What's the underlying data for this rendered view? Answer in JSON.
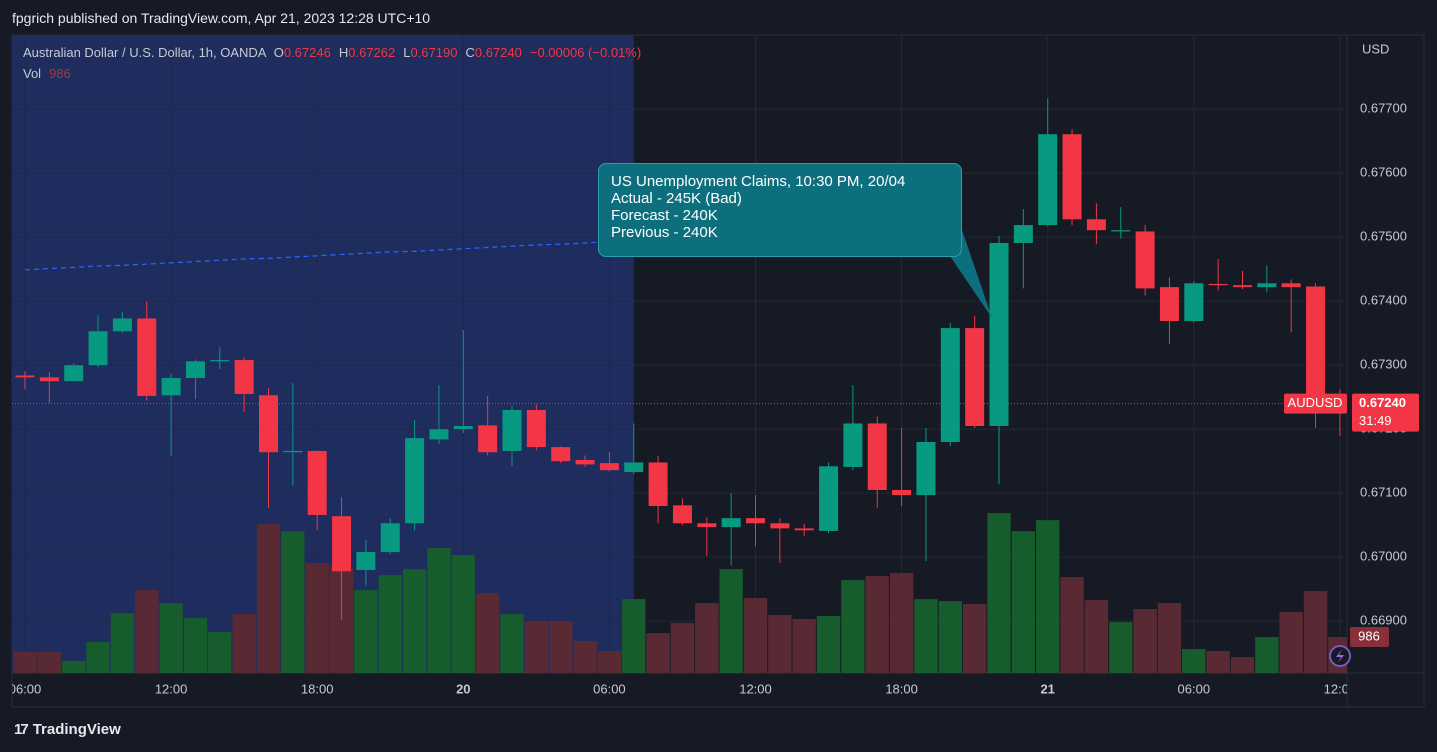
{
  "chart_data": {
    "type": "candlestick",
    "published": "fpgrich published on TradingView.com, Apr 21, 2023 12:28 UTC+10",
    "legend": {
      "symbol": "Australian Dollar / U.S. Dollar, 1h, OANDA",
      "o_label": "O",
      "open": "0.67246",
      "h_label": "H",
      "high": "0.67262",
      "l_label": "L",
      "low": "0.67190",
      "c_label": "C",
      "close": "0.67240",
      "change": "−0.00006 (−0.01%)",
      "vol_label": "Vol"
    },
    "currency": "USD",
    "annotation": {
      "lines": [
        "US Unemployment Claims, 10:30 PM, 20/04",
        "Actual - 245K (Bad)",
        "Forecast - 240K",
        "Previous - 240K"
      ]
    },
    "price_label": {
      "symbol": "AUDUSD",
      "price": "0.67240",
      "countdown": "31:49"
    },
    "brand": "TradingView",
    "colors": {
      "up": "#089981",
      "down": "#f23645",
      "volume_up": "#175c2c",
      "volume_down": "#5a2a34",
      "highlight": "#1e2c5e"
    },
    "categories": [
      "06:00",
      null,
      null,
      null,
      null,
      null,
      "12:00",
      null,
      null,
      null,
      null,
      null,
      "18:00",
      null,
      null,
      null,
      null,
      null,
      "20",
      null,
      null,
      null,
      null,
      null,
      "06:00",
      null,
      null,
      null,
      null,
      null,
      "12:00",
      null,
      null,
      null,
      null,
      null,
      "18:00",
      null,
      null,
      null,
      null,
      null,
      "21",
      null,
      null,
      null,
      null,
      null,
      "06:00",
      null,
      null,
      null,
      null,
      null,
      "12:00"
    ],
    "open": [
      0.67284,
      0.67281,
      0.67275,
      0.673,
      0.67353,
      0.67373,
      0.67253,
      0.6728,
      0.67306,
      0.67308,
      0.67253,
      0.67164,
      0.67166,
      0.67064,
      0.6698,
      0.67008,
      0.67053,
      0.67184,
      0.672,
      0.67206,
      0.67166,
      0.6723,
      0.67172,
      0.67152,
      0.67147,
      0.67133,
      0.67148,
      0.67081,
      0.67053,
      0.67047,
      0.67061,
      0.67053,
      0.67045,
      0.67041,
      0.67141,
      0.67209,
      0.67105,
      0.67097,
      0.6718,
      0.67358,
      0.67205,
      0.67491,
      0.67519,
      0.67661,
      0.67528,
      0.67509,
      0.67509,
      0.67422,
      0.67369,
      0.67427,
      0.67425,
      0.67422,
      0.67428,
      0.67423,
      0.67246
    ],
    "high": [
      0.67291,
      0.67289,
      0.67303,
      0.67378,
      0.67383,
      0.674,
      0.67287,
      0.67309,
      0.67328,
      0.67312,
      0.67264,
      0.67272,
      0.67167,
      0.67094,
      0.67027,
      0.67061,
      0.67214,
      0.67269,
      0.67355,
      0.67252,
      0.67236,
      0.67239,
      0.67173,
      0.67159,
      0.67164,
      0.67209,
      0.67158,
      0.67092,
      0.67062,
      0.671,
      0.67097,
      0.67061,
      0.67052,
      0.67148,
      0.67269,
      0.6722,
      0.67202,
      0.67202,
      0.67366,
      0.67377,
      0.67502,
      0.67544,
      0.67717,
      0.67669,
      0.67553,
      0.67547,
      0.67519,
      0.67437,
      0.67431,
      0.67466,
      0.67447,
      0.67456,
      0.67434,
      0.67428,
      0.67262
    ],
    "low": [
      0.67262,
      0.67241,
      0.67275,
      0.67297,
      0.6735,
      0.67245,
      0.67158,
      0.67247,
      0.67294,
      0.67227,
      0.67077,
      0.67112,
      0.67042,
      0.66902,
      0.66956,
      0.67005,
      0.67042,
      0.67177,
      0.67194,
      0.67159,
      0.67142,
      0.67167,
      0.67147,
      0.67141,
      0.67134,
      0.6713,
      0.67053,
      0.6705,
      0.67002,
      0.66987,
      0.67017,
      0.66991,
      0.67033,
      0.67037,
      0.67136,
      0.67077,
      0.6708,
      0.66994,
      0.67173,
      0.67202,
      0.67114,
      0.6742,
      0.67517,
      0.67519,
      0.67489,
      0.67498,
      0.67409,
      0.67333,
      0.67367,
      0.67417,
      0.67419,
      0.67414,
      0.67352,
      0.67202,
      0.6719
    ],
    "close": [
      0.67281,
      0.67275,
      0.673,
      0.67353,
      0.67373,
      0.67252,
      0.6728,
      0.67306,
      0.67308,
      0.67255,
      0.67164,
      0.67166,
      0.67066,
      0.66978,
      0.67008,
      0.67053,
      0.67186,
      0.672,
      0.67205,
      0.67164,
      0.6723,
      0.67172,
      0.6715,
      0.67145,
      0.67136,
      0.67148,
      0.6708,
      0.67053,
      0.67047,
      0.67061,
      0.67053,
      0.67045,
      0.67042,
      0.67142,
      0.67209,
      0.67105,
      0.67097,
      0.6718,
      0.67358,
      0.67205,
      0.67491,
      0.67519,
      0.67661,
      0.67528,
      0.67511,
      0.67511,
      0.6742,
      0.67369,
      0.67428,
      0.67425,
      0.67422,
      0.67428,
      0.67422,
      0.67234,
      0.6724
    ],
    "volume": [
      575,
      575,
      329,
      849,
      1643,
      2274,
      1918,
      1507,
      1123,
      1617,
      4083,
      3891,
      3014,
      2904,
      2274,
      2685,
      2850,
      3425,
      3233,
      2192,
      1617,
      1425,
      1425,
      877,
      603,
      2028,
      1096,
      1370,
      1918,
      2850,
      2055,
      1589,
      1480,
      1562,
      2548,
      2658,
      2740,
      2028,
      1973,
      1891,
      4384,
      3891,
      4192,
      2630,
      2000,
      1397,
      1754,
      1918,
      658,
      603,
      438,
      986,
      1671,
      2247,
      986
    ],
    "trend_line": {
      "color": "#2962ff",
      "values": [
        0.67449,
        0.67451,
        0.67453,
        0.67455,
        0.67456,
        0.67458,
        0.6746,
        0.67462,
        0.67464,
        0.67466,
        0.67467,
        0.67469,
        0.67471,
        0.67473,
        0.67475,
        0.67477,
        0.67478,
        0.6748,
        0.67482,
        0.67484,
        0.67486,
        0.67488,
        0.67489,
        0.67491,
        0.67493,
        0.67495,
        null,
        null,
        null,
        null,
        null,
        null,
        null,
        null,
        null,
        null,
        null,
        null,
        null,
        null,
        null,
        null,
        null,
        null,
        null,
        null,
        null,
        null,
        null,
        null,
        null,
        null,
        null,
        null,
        null
      ]
    },
    "ylim": [
      0.66819,
      0.67816
    ],
    "yticks": [
      {
        "value": 0.669,
        "label": "0.66900"
      },
      {
        "value": 0.67,
        "label": "0.67000"
      },
      {
        "value": 0.671,
        "label": "0.67100"
      },
      {
        "value": 0.672,
        "label": "0.67200"
      },
      {
        "value": 0.673,
        "label": "0.67300"
      },
      {
        "value": 0.674,
        "label": "0.67400"
      },
      {
        "value": 0.675,
        "label": "0.67500"
      },
      {
        "value": 0.676,
        "label": "0.67600"
      },
      {
        "value": 0.677,
        "label": "0.67700"
      }
    ],
    "y2lim": [
      0,
      17500
    ],
    "grid": true
  }
}
